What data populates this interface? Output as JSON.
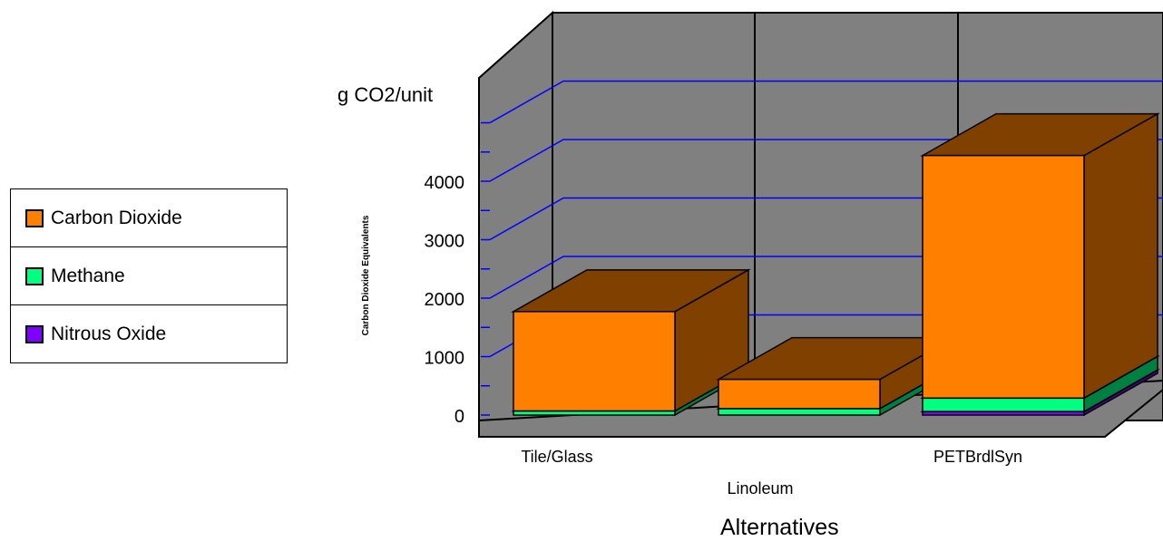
{
  "chart_data": {
    "type": "bar",
    "stacked": true,
    "three_d": true,
    "categories": [
      "Tile/Glass",
      "Linoleum",
      "PETBrdlSyn"
    ],
    "series": [
      {
        "name": "Nitrous Oxide",
        "values": [
          0,
          0,
          60
        ]
      },
      {
        "name": "Methane",
        "values": [
          70,
          110,
          230
        ]
      },
      {
        "name": "Carbon Dioxide",
        "values": [
          1700,
          500,
          4150
        ]
      }
    ],
    "unit_label": "g CO2/unit",
    "ylabel": "Carbon Dioxide Equivalents",
    "xlabel": "Alternatives",
    "yticks": [
      "0",
      "1000",
      "2000",
      "3000",
      "4000"
    ],
    "ylim": [
      0,
      5000
    ],
    "grid": true,
    "legend_position": "left",
    "colors": {
      "Carbon Dioxide": "#ff8000",
      "Methane": "#00ff80",
      "Nitrous Oxide": "#8000ff",
      "wall": "#808080",
      "gridline": "#0000ff"
    }
  }
}
